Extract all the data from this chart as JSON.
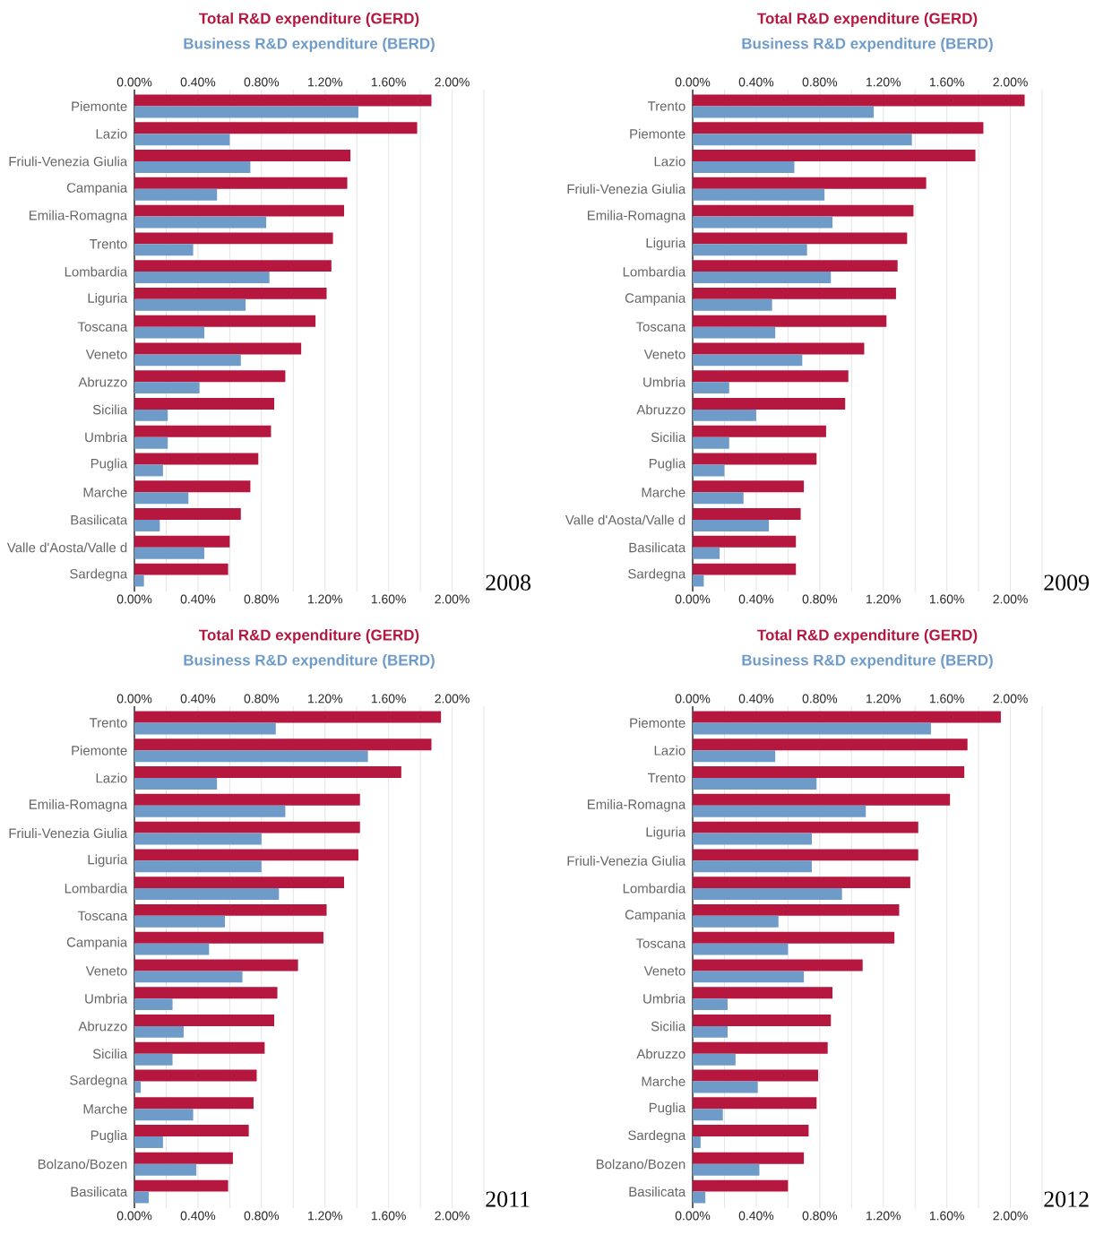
{
  "chart_data": [
    {
      "type": "bar",
      "orientation": "horizontal",
      "grid": "x",
      "legend": "top",
      "categories": [
        "Piemonte",
        "Lazio",
        "Friuli-Venezia Giulia",
        "Campania",
        "Emilia-Romagna",
        "Trento",
        "Lombardia",
        "Liguria",
        "Toscana",
        "Veneto",
        "Abruzzo",
        "Sicilia",
        "Umbria",
        "Puglia",
        "Marche",
        "Basilicata",
        "Valle d'Aosta/Valle d",
        "Sardegna"
      ],
      "series": [
        {
          "name": "Total R&D expenditure (GERD)",
          "color": "#b5173f",
          "values": [
            1.87,
            1.78,
            1.36,
            1.34,
            1.32,
            1.25,
            1.24,
            1.21,
            1.14,
            1.05,
            0.95,
            0.88,
            0.86,
            0.78,
            0.73,
            0.67,
            0.6,
            0.59
          ]
        },
        {
          "name": "Business R&D expenditure (BERD)",
          "color": "#6f9bc8",
          "values": [
            1.41,
            0.6,
            0.73,
            0.52,
            0.83,
            0.37,
            0.85,
            0.7,
            0.44,
            0.67,
            0.41,
            0.21,
            0.21,
            0.18,
            0.34,
            0.16,
            0.44,
            0.06
          ]
        }
      ],
      "xlim": [
        0,
        2.2
      ],
      "xticks": [
        {
          "value": 0,
          "label": "0.00%"
        },
        {
          "value": 0.2,
          "label": null
        },
        {
          "value": 0.4,
          "label": "0.40%"
        },
        {
          "value": 0.6,
          "label": null
        },
        {
          "value": 0.8,
          "label": "0.80%"
        },
        {
          "value": 1.0,
          "label": null
        },
        {
          "value": 1.2,
          "label": "1.20%"
        },
        {
          "value": 1.4,
          "label": null
        },
        {
          "value": 1.6,
          "label": "1.60%"
        },
        {
          "value": 1.8,
          "label": null
        },
        {
          "value": 2.0,
          "label": "2.00%"
        },
        {
          "value": 2.2,
          "label": null
        }
      ],
      "x2lim": [
        0,
        2.2
      ],
      "x2ticks": [
        {
          "value": 0,
          "label": "0.00%"
        },
        {
          "value": 0.4,
          "label": "0.40%"
        },
        {
          "value": 0.8,
          "label": "0.80%"
        },
        {
          "value": 1.2,
          "label": "1.20%"
        },
        {
          "value": 1.6,
          "label": "1.60%"
        },
        {
          "value": 2.0,
          "label": "2.00%"
        }
      ],
      "annotations": [
        "2008"
      ]
    },
    {
      "type": "bar",
      "orientation": "horizontal",
      "grid": "x",
      "legend": "top",
      "categories": [
        "Trento",
        "Piemonte",
        "Lazio",
        "Friuli-Venezia Giulia",
        "Emilia-Romagna",
        "Liguria",
        "Lombardia",
        "Campania",
        "Toscana",
        "Veneto",
        "Umbria",
        "Abruzzo",
        "Sicilia",
        "Puglia",
        "Marche",
        "Valle d'Aosta/Valle d",
        "Basilicata",
        "Sardegna"
      ],
      "series": [
        {
          "name": "Total R&D expenditure (GERD)",
          "color": "#b5173f",
          "values": [
            2.09,
            1.83,
            1.78,
            1.47,
            1.39,
            1.35,
            1.29,
            1.28,
            1.22,
            1.08,
            0.98,
            0.96,
            0.84,
            0.78,
            0.7,
            0.68,
            0.65,
            0.65
          ]
        },
        {
          "name": "Business R&D expenditure (BERD)",
          "color": "#6f9bc8",
          "values": [
            1.14,
            1.38,
            0.64,
            0.83,
            0.88,
            0.72,
            0.87,
            0.5,
            0.52,
            0.69,
            0.23,
            0.4,
            0.23,
            0.2,
            0.32,
            0.48,
            0.17,
            0.07
          ]
        }
      ],
      "xlim": [
        0,
        2.2
      ],
      "xticks": [
        {
          "value": 0,
          "label": "0.00%"
        },
        {
          "value": 0.2,
          "label": null
        },
        {
          "value": 0.4,
          "label": "0.40%"
        },
        {
          "value": 0.6,
          "label": null
        },
        {
          "value": 0.8,
          "label": "0.80%"
        },
        {
          "value": 1.0,
          "label": null
        },
        {
          "value": 1.2,
          "label": "1.20%"
        },
        {
          "value": 1.4,
          "label": null
        },
        {
          "value": 1.6,
          "label": "1.60%"
        },
        {
          "value": 1.8,
          "label": null
        },
        {
          "value": 2.0,
          "label": "2.00%"
        },
        {
          "value": 2.2,
          "label": null
        }
      ],
      "x2lim": [
        0,
        2.2
      ],
      "x2ticks": [
        {
          "value": 0,
          "label": "0.00%"
        },
        {
          "value": 0.4,
          "label": "0.40%"
        },
        {
          "value": 0.8,
          "label": "0.80%"
        },
        {
          "value": 1.2,
          "label": "1.20%"
        },
        {
          "value": 1.6,
          "label": "1.60%"
        },
        {
          "value": 2.0,
          "label": "2.00%"
        }
      ],
      "annotations": [
        "2009"
      ]
    },
    {
      "type": "bar",
      "orientation": "horizontal",
      "grid": "x",
      "legend": "top",
      "categories": [
        "Trento",
        "Piemonte",
        "Lazio",
        "Emilia-Romagna",
        "Friuli-Venezia Giulia",
        "Liguria",
        "Lombardia",
        "Toscana",
        "Campania",
        "Veneto",
        "Umbria",
        "Abruzzo",
        "Sicilia",
        "Sardegna",
        "Marche",
        "Puglia",
        "Bolzano/Bozen",
        "Basilicata"
      ],
      "series": [
        {
          "name": "Total R&D expenditure (GERD)",
          "color": "#b5173f",
          "values": [
            1.93,
            1.87,
            1.68,
            1.42,
            1.42,
            1.41,
            1.32,
            1.21,
            1.19,
            1.03,
            0.9,
            0.88,
            0.82,
            0.77,
            0.75,
            0.72,
            0.62,
            0.59
          ]
        },
        {
          "name": "Business R&D expenditure (BERD)",
          "color": "#6f9bc8",
          "values": [
            0.89,
            1.47,
            0.52,
            0.95,
            0.8,
            0.8,
            0.91,
            0.57,
            0.47,
            0.68,
            0.24,
            0.31,
            0.24,
            0.04,
            0.37,
            0.18,
            0.39,
            0.09
          ]
        }
      ],
      "xlim": [
        0,
        2.2
      ],
      "xticks": [
        {
          "value": 0,
          "label": "0.00%"
        },
        {
          "value": 0.2,
          "label": null
        },
        {
          "value": 0.4,
          "label": "0.40%"
        },
        {
          "value": 0.6,
          "label": null
        },
        {
          "value": 0.8,
          "label": "0.80%"
        },
        {
          "value": 1.0,
          "label": null
        },
        {
          "value": 1.2,
          "label": "1.20%"
        },
        {
          "value": 1.4,
          "label": null
        },
        {
          "value": 1.6,
          "label": "1.60%"
        },
        {
          "value": 1.8,
          "label": null
        },
        {
          "value": 2.0,
          "label": "2.00%"
        },
        {
          "value": 2.2,
          "label": null
        }
      ],
      "x2lim": [
        0,
        2.2
      ],
      "x2ticks": [
        {
          "value": 0,
          "label": "0.00%"
        },
        {
          "value": 0.4,
          "label": "0.40%"
        },
        {
          "value": 0.8,
          "label": "0.80%"
        },
        {
          "value": 1.2,
          "label": "1.20%"
        },
        {
          "value": 1.6,
          "label": "1.60%"
        },
        {
          "value": 2.0,
          "label": "2.00%"
        }
      ],
      "annotations": [
        "2011"
      ]
    },
    {
      "type": "bar",
      "orientation": "horizontal",
      "grid": "x",
      "legend": "top",
      "categories": [
        "Piemonte",
        "Lazio",
        "Trento",
        "Emilia-Romagna",
        "Liguria",
        "Friuli-Venezia Giulia",
        "Lombardia",
        "Campania",
        "Toscana",
        "Veneto",
        "Umbria",
        "Sicilia",
        "Abruzzo",
        "Marche",
        "Puglia",
        "Sardegna",
        "Bolzano/Bozen",
        "Basilicata"
      ],
      "series": [
        {
          "name": "Total R&D expenditure (GERD)",
          "color": "#b5173f",
          "values": [
            1.94,
            1.73,
            1.71,
            1.62,
            1.42,
            1.42,
            1.37,
            1.3,
            1.27,
            1.07,
            0.88,
            0.87,
            0.85,
            0.79,
            0.78,
            0.73,
            0.7,
            0.6
          ]
        },
        {
          "name": "Business R&D expenditure (BERD)",
          "color": "#6f9bc8",
          "values": [
            1.5,
            0.52,
            0.78,
            1.09,
            0.75,
            0.75,
            0.94,
            0.54,
            0.6,
            0.7,
            0.22,
            0.22,
            0.27,
            0.41,
            0.19,
            0.05,
            0.42,
            0.08
          ]
        }
      ],
      "xlim": [
        0,
        2.2
      ],
      "xticks": [
        {
          "value": 0,
          "label": "0.00%"
        },
        {
          "value": 0.2,
          "label": null
        },
        {
          "value": 0.4,
          "label": "0.40%"
        },
        {
          "value": 0.6,
          "label": null
        },
        {
          "value": 0.8,
          "label": "0.80%"
        },
        {
          "value": 1.0,
          "label": null
        },
        {
          "value": 1.2,
          "label": "1.20%"
        },
        {
          "value": 1.4,
          "label": null
        },
        {
          "value": 1.6,
          "label": "1.60%"
        },
        {
          "value": 1.8,
          "label": null
        },
        {
          "value": 2.0,
          "label": "2.00%"
        },
        {
          "value": 2.2,
          "label": null
        }
      ],
      "x2lim": [
        0,
        2.2
      ],
      "x2ticks": [
        {
          "value": 0,
          "label": "0.00%"
        },
        {
          "value": 0.4,
          "label": "0.40%"
        },
        {
          "value": 0.8,
          "label": "0.80%"
        },
        {
          "value": 1.2,
          "label": "1.20%"
        },
        {
          "value": 1.6,
          "label": "1.60%"
        },
        {
          "value": 2.0,
          "label": "2.00%"
        }
      ],
      "annotations": [
        "2012"
      ]
    }
  ]
}
